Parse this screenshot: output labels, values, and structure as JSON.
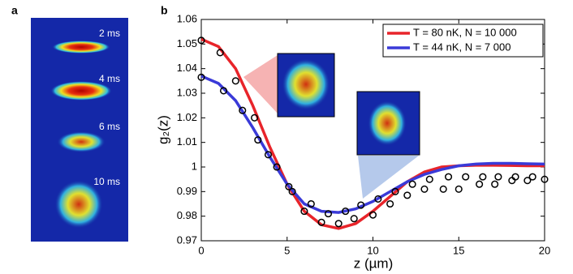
{
  "panel_labels": [
    "a",
    "b"
  ],
  "panel_a": {
    "times": [
      "2 ms",
      "4 ms",
      "6 ms",
      "10 ms"
    ]
  },
  "chart_data": {
    "type": "line",
    "xlabel": "z (µm)",
    "ylabel": "g₂(z)",
    "xlim": [
      0,
      20
    ],
    "xticks": [
      0,
      5,
      10,
      15,
      20
    ],
    "ylim": [
      0.97,
      1.06
    ],
    "yticks": [
      0.97,
      0.98,
      0.99,
      1,
      1.01,
      1.02,
      1.03,
      1.04,
      1.05,
      1.06
    ],
    "legend": "top-right",
    "x": [
      0,
      1,
      2,
      3,
      4,
      5,
      6,
      7,
      8,
      9,
      10,
      11,
      12,
      13,
      14,
      15,
      16,
      17,
      18,
      19,
      20
    ],
    "series": [
      {
        "name": "T = 80 nK, N = 10 000",
        "color": "#e8242a",
        "values": [
          1.052,
          1.049,
          1.04,
          1.025,
          1.008,
          0.993,
          0.982,
          0.9765,
          0.975,
          0.977,
          0.982,
          0.988,
          0.994,
          0.998,
          1.0,
          1.0005,
          1.0007,
          1.0007,
          1.0006,
          1.0005,
          1.0005
        ]
      },
      {
        "name": "T = 44 nK, N = 7 000",
        "color": "#3a3ad8",
        "values": [
          1.037,
          1.034,
          1.027,
          1.016,
          1.004,
          0.993,
          0.985,
          0.982,
          0.9815,
          0.983,
          0.986,
          0.99,
          0.994,
          0.997,
          0.999,
          1.0005,
          1.0012,
          1.0015,
          1.0015,
          1.0013,
          1.0012
        ]
      }
    ],
    "points": {
      "x": [
        0,
        1.1,
        2.0,
        0,
        1.3,
        2.4,
        3.1,
        3.3,
        3.9,
        4.4,
        5.1,
        5.3,
        6.0,
        6.4,
        7.0,
        7.4,
        8.0,
        8.4,
        8.9,
        9.3,
        10.0,
        10.3,
        11.0,
        11.3,
        12.0,
        12.3,
        13.0,
        13.3,
        14.1,
        14.4,
        15.0,
        15.4,
        16.2,
        16.4,
        17.1,
        17.3,
        18.1,
        18.3,
        19.0,
        19.3,
        20
      ],
      "y": [
        1.0515,
        1.0465,
        1.035,
        1.0365,
        1.031,
        1.023,
        1.02,
        1.011,
        1.005,
        1.0,
        0.992,
        0.99,
        0.982,
        0.985,
        0.9775,
        0.981,
        0.977,
        0.982,
        0.979,
        0.9845,
        0.9805,
        0.987,
        0.985,
        0.99,
        0.9885,
        0.993,
        0.991,
        0.995,
        0.991,
        0.996,
        0.991,
        0.996,
        0.993,
        0.996,
        0.993,
        0.996,
        0.9945,
        0.996,
        0.9945,
        0.996,
        0.995
      ]
    }
  }
}
